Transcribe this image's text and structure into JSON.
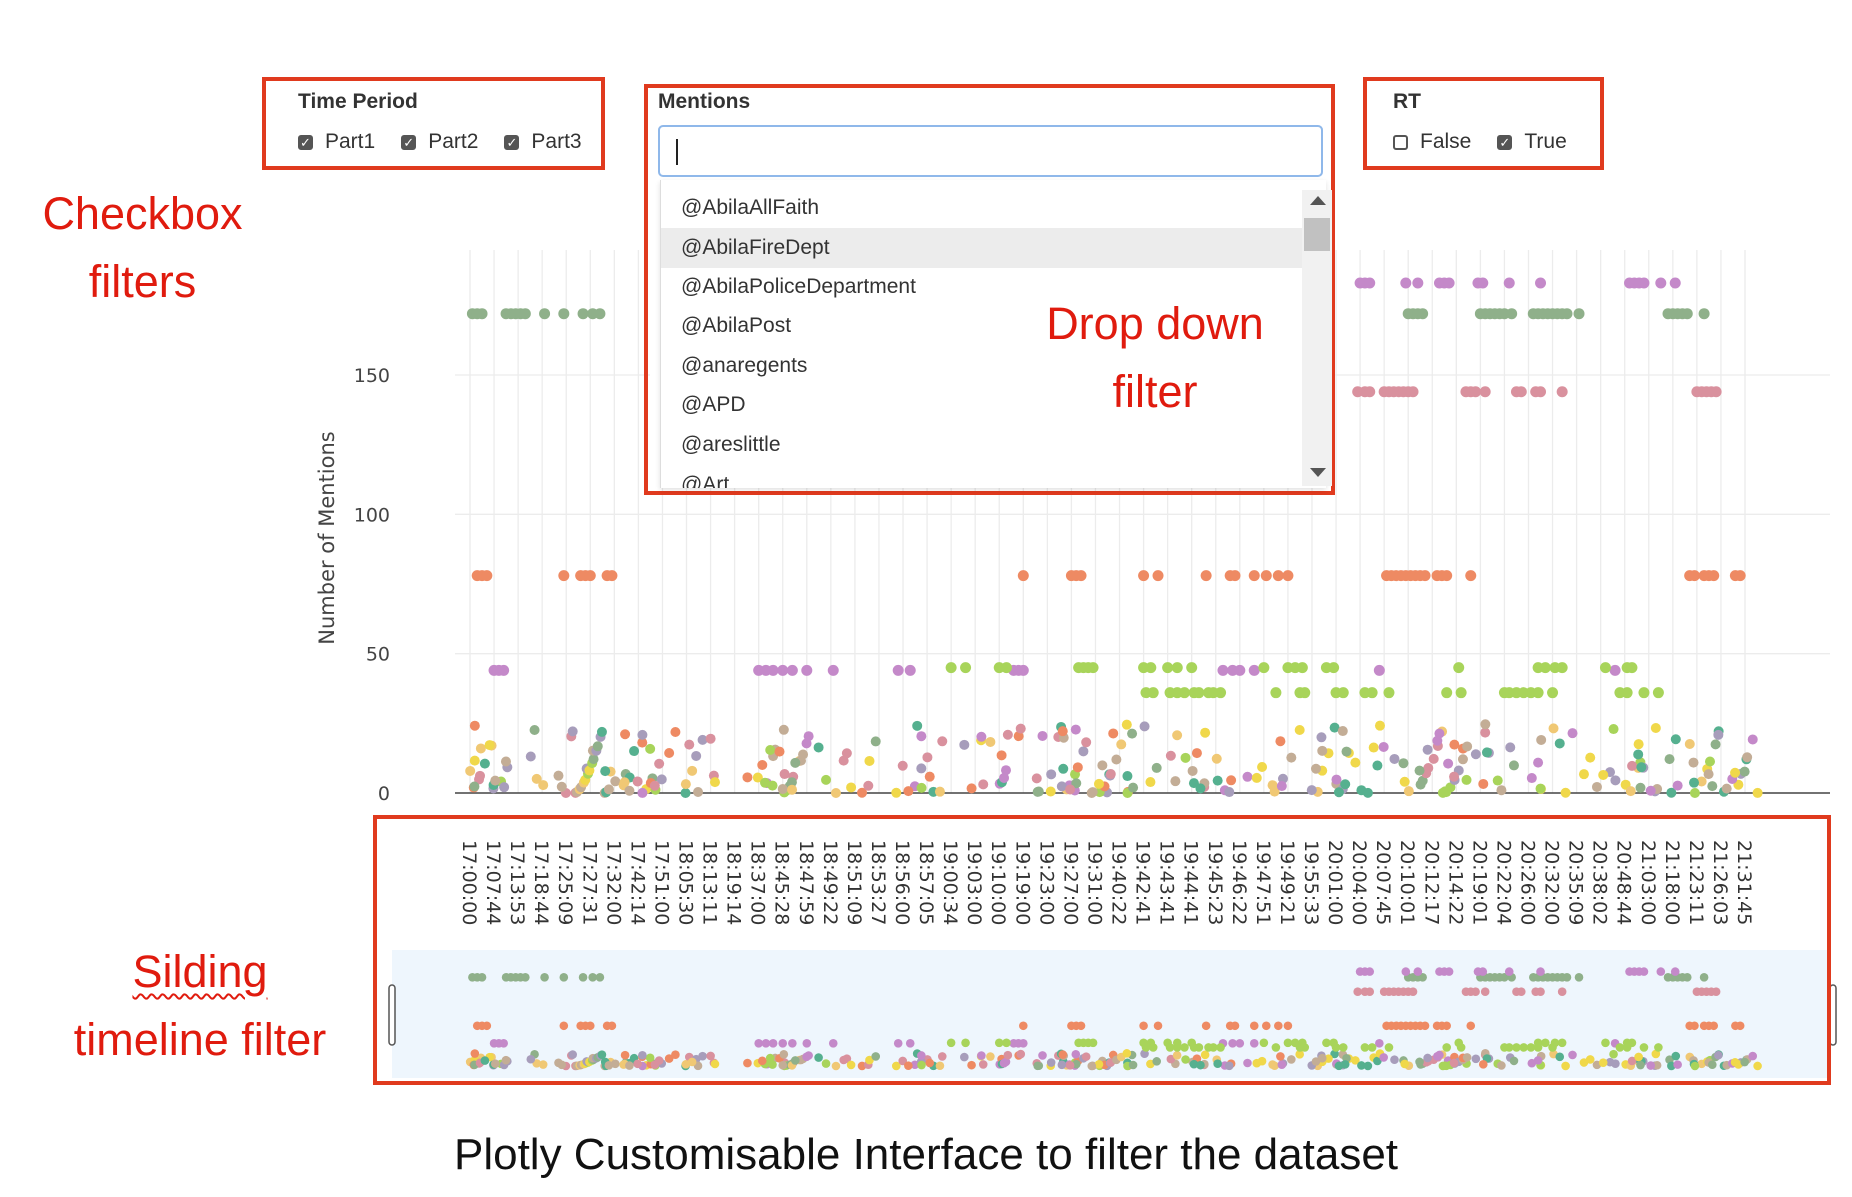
{
  "filters": {
    "time_period": {
      "title": "Time Period",
      "options": [
        {
          "label": "Part1",
          "checked": true
        },
        {
          "label": "Part2",
          "checked": true
        },
        {
          "label": "Part3",
          "checked": true
        }
      ]
    },
    "mentions": {
      "title": "Mentions",
      "input_value": "",
      "options": [
        "@AbilaAllFaith",
        "@AbilaFireDept",
        "@AbilaPoliceDepartment",
        "@AbilaPost",
        "@anaregents",
        "@APD",
        "@areslittle",
        "@Art"
      ],
      "highlighted": "@AbilaFireDept"
    },
    "rt": {
      "title": "RT",
      "options": [
        {
          "label": "False",
          "checked": false
        },
        {
          "label": "True",
          "checked": true
        }
      ]
    }
  },
  "annotations": {
    "checkbox": [
      "Checkbox",
      "filters"
    ],
    "dropdown": [
      "Drop down",
      "filter"
    ],
    "slider_word1": "Silding",
    "slider_word2": "timeline filter"
  },
  "caption": "Plotly Customisable Interface to filter the dataset",
  "colors": {
    "frame": "#e03a1e",
    "annotation": "#e01b0e",
    "green": "#8fb08a",
    "purple": "#c489c9",
    "pink": "#d9919e",
    "orange": "#ee8a63",
    "lime": "#a8d45a",
    "yellow": "#f0d84a",
    "tan": "#c3ad96",
    "gray_purple": "#a79dbb",
    "teal": "#55b08f",
    "sand": "#f0c874"
  },
  "chart_data": {
    "type": "scatter",
    "ylabel": "Number of Mentions",
    "yticks": [
      0,
      50,
      100,
      150
    ],
    "ylim": [
      -5,
      195
    ],
    "grid": true,
    "x_ticks": [
      "17:00:00",
      "17:07:44",
      "17:13:53",
      "17:18:44",
      "17:25:09",
      "17:27:31",
      "17:32:00",
      "17:42:14",
      "17:51:00",
      "18:05:30",
      "18:13:11",
      "18:19:14",
      "18:37:00",
      "18:45:28",
      "18:47:59",
      "18:49:22",
      "18:51:09",
      "18:53:27",
      "18:56:00",
      "18:57:05",
      "19:00:34",
      "19:03:00",
      "19:10:00",
      "19:19:00",
      "19:23:00",
      "19:27:00",
      "19:31:00",
      "19:40:22",
      "19:42:41",
      "19:43:41",
      "19:44:41",
      "19:45:23",
      "19:46:22",
      "19:47:51",
      "19:49:21",
      "19:55:33",
      "20:01:00",
      "20:04:00",
      "20:07:45",
      "20:10:01",
      "20:12:17",
      "20:14:22",
      "20:19:01",
      "20:22:04",
      "20:26:00",
      "20:32:00",
      "20:35:09",
      "20:38:02",
      "20:48:44",
      "21:03:00",
      "21:18:00",
      "21:23:11",
      "21:26:03",
      "21:31:45"
    ],
    "series": [
      {
        "level": 172,
        "color": "#8fb08a",
        "x": [
          0.1,
          0.3,
          0.5,
          1.5,
          1.7,
          1.9,
          2.1,
          2.3,
          3.1,
          3.9,
          4.7,
          5.1,
          5.4,
          39.0,
          39.2,
          39.4,
          39.6,
          42.0,
          42.2,
          42.4,
          42.6,
          42.8,
          43.0,
          43.3,
          44.2,
          44.4,
          44.6,
          44.8,
          45.0,
          45.2,
          45.4,
          45.6,
          46.1,
          49.8,
          50.0,
          50.2,
          50.4,
          50.6,
          51.3
        ]
      },
      {
        "level": 183,
        "color": "#c489c9",
        "x": [
          37.0,
          37.2,
          37.4,
          38.9,
          39.4,
          40.3,
          40.5,
          40.7,
          41.9,
          42.1,
          43.2,
          44.5,
          48.2,
          48.4,
          48.6,
          48.8,
          49.5,
          50.1
        ]
      },
      {
        "level": 144,
        "color": "#d9919e",
        "x": [
          36.9,
          37.2,
          37.4,
          38.0,
          38.2,
          38.4,
          38.6,
          38.8,
          39.0,
          39.2,
          41.4,
          41.6,
          41.8,
          42.2,
          43.5,
          43.7,
          44.3,
          44.5,
          45.4,
          51.0,
          51.2,
          51.4,
          51.6,
          51.8
        ]
      },
      {
        "level": 78,
        "color": "#ee8a63",
        "x": [
          0.3,
          0.5,
          0.7,
          3.9,
          4.6,
          4.8,
          5.0,
          5.7,
          5.9,
          23.0,
          25.0,
          25.2,
          25.4,
          28.0,
          28.6,
          30.6,
          31.6,
          31.8,
          32.6,
          33.1,
          33.6,
          34.0,
          38.1,
          38.3,
          38.5,
          38.7,
          38.9,
          39.1,
          39.3,
          39.5,
          39.7,
          40.2,
          40.4,
          40.6,
          41.6,
          50.7,
          50.9,
          51.3,
          51.5,
          51.7,
          52.6,
          52.8
        ]
      },
      {
        "level": 44,
        "color": "#c489c9",
        "x": [
          1.0,
          1.2,
          1.4,
          12.0,
          12.3,
          12.6,
          13.0,
          13.4,
          14.0,
          15.1,
          17.8,
          18.3,
          22.6,
          22.8,
          23.0,
          31.3,
          31.7,
          32.0,
          32.6,
          37.8,
          47.6
        ]
      },
      {
        "level": 45,
        "color": "#a8d45a",
        "x": [
          20.0,
          20.6,
          22.0,
          22.3,
          25.3,
          25.5,
          25.7,
          25.9,
          28.0,
          28.3,
          29.0,
          29.4,
          30.0,
          33.0,
          34.0,
          34.3,
          34.6,
          35.6,
          35.9,
          41.1,
          44.4,
          44.7,
          45.1,
          45.4,
          47.2,
          48.1,
          48.3
        ]
      },
      {
        "level": 36,
        "color": "#a8d45a",
        "x": [
          28.1,
          28.4,
          29.1,
          29.4,
          29.7,
          30.1,
          30.3,
          30.7,
          30.9,
          31.2,
          33.5,
          34.5,
          34.7,
          36.0,
          36.3,
          37.2,
          37.5,
          38.2,
          40.6,
          41.2,
          43.0,
          43.2,
          43.5,
          43.8,
          44.1,
          44.4,
          45.0,
          47.8,
          48.1,
          48.8,
          49.4
        ]
      }
    ],
    "low_cluster": {
      "x_range": [
        0,
        53.6
      ],
      "y_range": [
        0,
        25
      ],
      "count": 330,
      "colors": [
        "#f0d84a",
        "#c3ad96",
        "#a79dbb",
        "#a8d45a",
        "#f0c874",
        "#d9919e",
        "#ee8a63",
        "#c489c9",
        "#55b08f",
        "#8fb08a"
      ]
    }
  }
}
